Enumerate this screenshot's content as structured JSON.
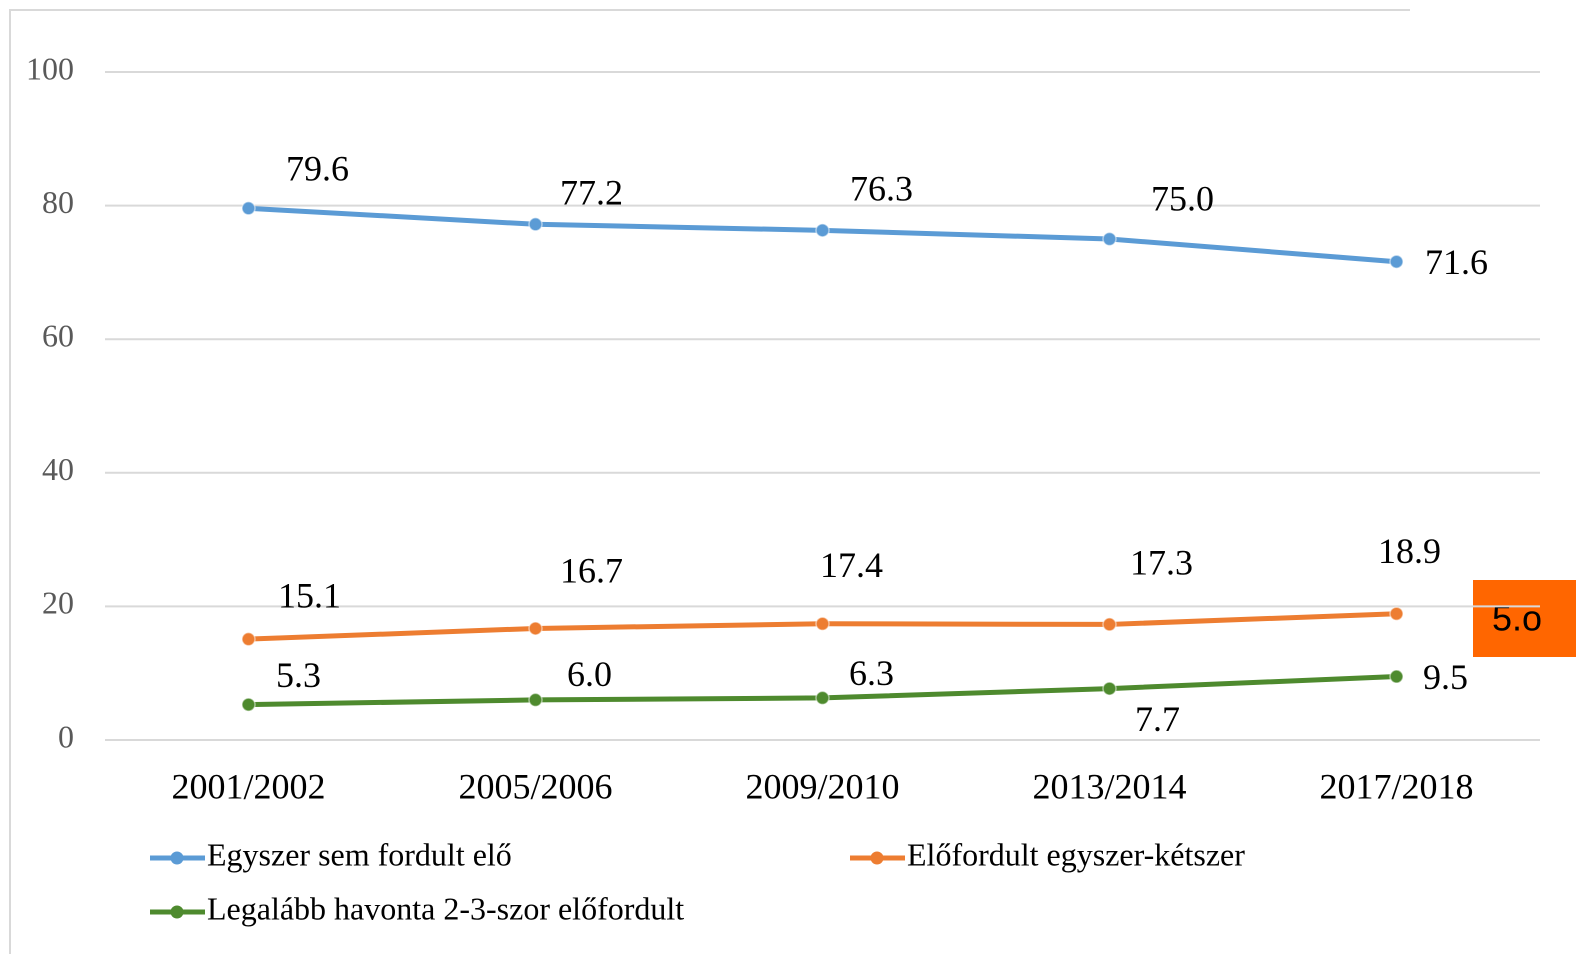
{
  "chart_data": {
    "type": "line",
    "categories": [
      "2001/2002",
      "2005/2006",
      "2009/2010",
      "2013/2014",
      "2017/2018"
    ],
    "series": [
      {
        "name": "Egyszer sem fordult elő",
        "color": "#5b9bd5",
        "values": [
          79.6,
          77.2,
          76.3,
          75.0,
          71.6
        ],
        "value_labels": [
          "79.6",
          "77.2",
          "76.3",
          "75.0",
          "71.6"
        ]
      },
      {
        "name": "Előfordult egyszer-kétszer",
        "color": "#ed7d31",
        "values": [
          15.1,
          16.7,
          17.4,
          17.3,
          18.9
        ],
        "value_labels": [
          "15.1",
          "16.7",
          "17.4",
          "17.3",
          "18.9"
        ]
      },
      {
        "name": "Legalább havonta 2-3-szor előfordult",
        "color": "#4e8a2e",
        "values": [
          5.3,
          6.0,
          6.3,
          7.7,
          9.5
        ],
        "value_labels": [
          "5.3",
          "6.0",
          "6.3",
          "7.7",
          "9.5"
        ]
      }
    ],
    "ylim": [
      0,
      100
    ],
    "yticks": [
      0,
      20,
      40,
      60,
      80,
      100
    ],
    "grid": true,
    "annotation": "5.o"
  }
}
